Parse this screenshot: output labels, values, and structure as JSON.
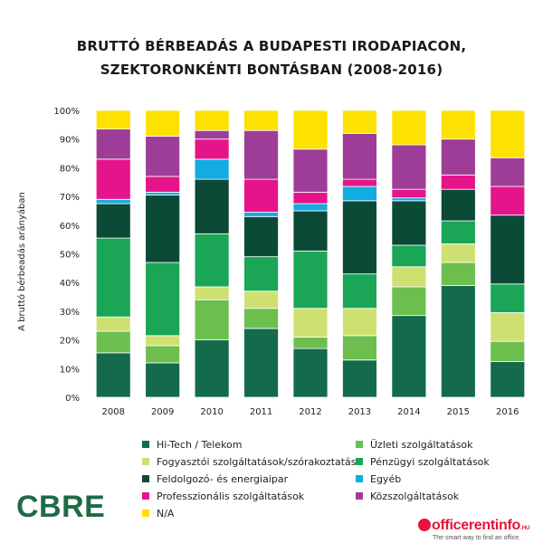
{
  "title": {
    "line1": "BRUTTÓ BÉRBEADÁS A BUDAPESTI IRODAPIACON,",
    "line2": "SZEKTORONKÉNTI BONTÁSBAN (2008-2016)"
  },
  "chart_data": {
    "type": "bar",
    "stacked": true,
    "categories": [
      "2008",
      "2009",
      "2010",
      "2011",
      "2012",
      "2013",
      "2014",
      "2015",
      "2016"
    ],
    "ylabel": "A bruttó bérbeadás arányában",
    "ylim": [
      0,
      100
    ],
    "yticks": [
      "0%",
      "10%",
      "20%",
      "30%",
      "40%",
      "50%",
      "60%",
      "70%",
      "80%",
      "90%",
      "100%"
    ],
    "grid": false,
    "legend_position": "bottom",
    "series": [
      {
        "name": "Hi-Tech / Telekom",
        "color": "#136b4b",
        "values": [
          15.5,
          12.0,
          20.0,
          24.0,
          17.0,
          13.0,
          28.5,
          39.0,
          12.5
        ]
      },
      {
        "name": "Üzleti szolgáltatások",
        "color": "#6cbf4f",
        "values": [
          7.5,
          6.0,
          14.0,
          7.0,
          4.0,
          8.5,
          10.0,
          8.0,
          7.0
        ]
      },
      {
        "name": "Fogyasztói szolgáltatások/szórakoztatás",
        "color": "#cfe072",
        "values": [
          5.0,
          3.5,
          4.5,
          6.0,
          10.0,
          9.5,
          7.0,
          6.5,
          10.0
        ]
      },
      {
        "name": "Pénzügyi szolgáltatások",
        "color": "#1aa557",
        "values": [
          27.5,
          25.5,
          18.5,
          12.0,
          20.0,
          12.0,
          7.5,
          8.0,
          10.0
        ]
      },
      {
        "name": "Feldolgozó- és energiaipar",
        "color": "#0b4a36",
        "values": [
          12.0,
          23.5,
          19.0,
          14.0,
          14.0,
          25.5,
          15.5,
          11.0,
          24.0
        ]
      },
      {
        "name": "Egyéb",
        "color": "#13ace0",
        "values": [
          1.5,
          1.0,
          7.0,
          1.5,
          2.5,
          5.0,
          1.0,
          0,
          0
        ]
      },
      {
        "name": "Professzionális szolgáltatások",
        "color": "#e6148b",
        "values": [
          14.0,
          5.5,
          7.0,
          11.5,
          4.0,
          2.5,
          3.0,
          5.0,
          10.0
        ]
      },
      {
        "name": "Közszolgáltatások",
        "color": "#9e3d97",
        "values": [
          10.5,
          14.0,
          3.0,
          17.0,
          15.0,
          16.0,
          15.5,
          12.5,
          10.0
        ]
      },
      {
        "name": "N/A",
        "color": "#fde100",
        "values": [
          6.5,
          9.0,
          7.0,
          7.0,
          13.5,
          8.0,
          12.0,
          10.0,
          16.5
        ]
      }
    ]
  },
  "legend": {
    "items": [
      {
        "label": "Hi-Tech / Telekom",
        "color": "#136b4b"
      },
      {
        "label": "Üzleti szolgáltatások",
        "color": "#6cbf4f"
      },
      {
        "label": "Fogyasztói szolgáltatások/szórakoztatás",
        "color": "#cfe072"
      },
      {
        "label": "Pénzügyi szolgáltatások",
        "color": "#1aa557"
      },
      {
        "label": "Feldolgozó- és energiaipar",
        "color": "#0b4a36"
      },
      {
        "label": "Egyéb",
        "color": "#13ace0"
      },
      {
        "label": "Professzionális szolgáltatások",
        "color": "#e6148b"
      },
      {
        "label": "Közszolgáltatások",
        "color": "#9e3d97"
      },
      {
        "label": "N/A",
        "color": "#fde100"
      }
    ]
  },
  "logos": {
    "cbre": "CBRE",
    "officerentinfo": "officerentinfo",
    "officerentinfo_tld": ".HU",
    "officerentinfo_slogan": "The smart way to find an office."
  }
}
